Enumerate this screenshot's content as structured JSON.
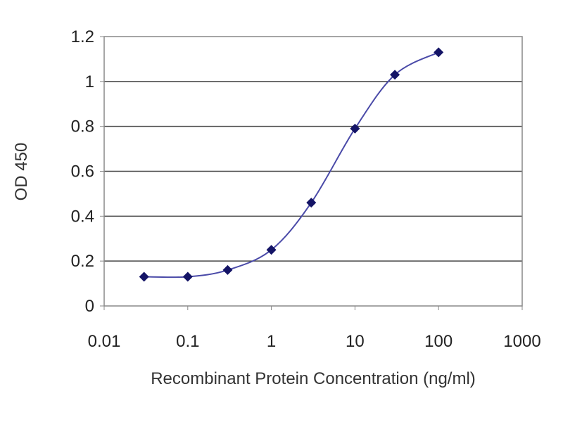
{
  "chart_data": {
    "type": "line",
    "title": "",
    "xlabel": "Recombinant Protein Concentration (ng/ml)",
    "ylabel": "OD 450",
    "x_scale": "log",
    "xlim": [
      0.01,
      1000
    ],
    "ylim": [
      0,
      1.2
    ],
    "x_ticks": [
      "0.01",
      "0.1",
      "1",
      "10",
      "100",
      "1000"
    ],
    "y_ticks": [
      "0",
      "0.2",
      "0.4",
      "0.6",
      "0.8",
      "1",
      "1.2"
    ],
    "grid": "horizontal",
    "series": [
      {
        "x": [
          0.03,
          0.1,
          0.3,
          1,
          3,
          10,
          30,
          100
        ],
        "values": [
          0.13,
          0.13,
          0.16,
          0.25,
          0.46,
          0.79,
          1.03,
          1.13
        ]
      }
    ],
    "colors": {
      "marker": "#141466",
      "line": "#4a4aa8",
      "grid": "#444444",
      "axis": "#888888"
    }
  }
}
